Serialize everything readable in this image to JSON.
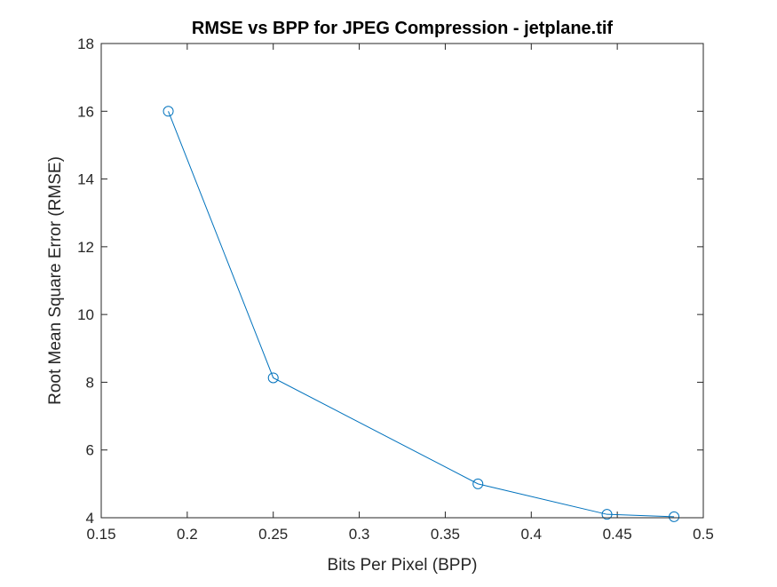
{
  "chart_data": {
    "type": "line",
    "title": "RMSE vs BPP for JPEG Compression - jetplane.tif",
    "xlabel": "Bits Per Pixel (BPP)",
    "ylabel": "Root Mean Square Error (RMSE)",
    "xlim": [
      0.15,
      0.5
    ],
    "ylim": [
      4,
      18
    ],
    "xticks": [
      "0.15",
      "0.2",
      "0.25",
      "0.3",
      "0.35",
      "0.4",
      "0.45",
      "0.5"
    ],
    "yticks": [
      "4",
      "6",
      "8",
      "10",
      "12",
      "14",
      "16",
      "18"
    ],
    "grid": false,
    "legend": "none",
    "series": [
      {
        "color": "#0072BD",
        "marker": "circle",
        "x": [
          0.189,
          0.25,
          0.369,
          0.444,
          0.483
        ],
        "y": [
          16.0,
          8.13,
          5.0,
          4.1,
          4.03
        ]
      }
    ]
  }
}
